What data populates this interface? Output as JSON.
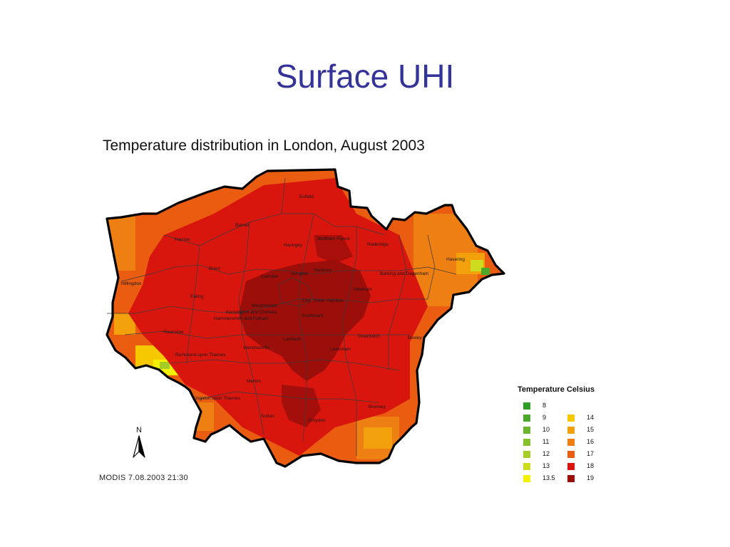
{
  "slide": {
    "title": "Surface UHI"
  },
  "map": {
    "title": "Temperature distribution in London, August 2003",
    "source_note": "MODIS  7.08.2003   21:30",
    "north_label": "N",
    "boroughs": [
      "Enfield",
      "Barnet",
      "Harrow",
      "Haringey",
      "Waltham Forest",
      "Redbridge",
      "Havering",
      "Brent",
      "Camden",
      "Islington",
      "Hackney",
      "Barking and Dagenham",
      "Hillingdon",
      "Newham",
      "Ealing",
      "Westminster",
      "City",
      "Tower Hamlets",
      "Kensington and Chelsea",
      "Hammersmith and Fulham",
      "Southwark",
      "Hounslow",
      "Greenwich",
      "Bexley",
      "Wandsworth",
      "Lambeth",
      "Lewisham",
      "Richmond upon Thames",
      "Merton",
      "Kingston upon Thames",
      "Bromley",
      "Sutton",
      "Croydon"
    ]
  },
  "legend": {
    "title": "Temperature Celsius",
    "items": [
      {
        "label": "8",
        "color": "#2e9e24"
      },
      {
        "label": "9",
        "color": "#4aa92a"
      },
      {
        "label": "10",
        "color": "#6bb52c"
      },
      {
        "label": "11",
        "color": "#86c02b"
      },
      {
        "label": "12",
        "color": "#a6cc27"
      },
      {
        "label": "13",
        "color": "#cddc1f"
      },
      {
        "label": "13.5",
        "color": "#f4f000"
      },
      {
        "label": "14",
        "color": "#f6c800"
      },
      {
        "label": "15",
        "color": "#f2a10c"
      },
      {
        "label": "16",
        "color": "#ee7f12"
      },
      {
        "label": "17",
        "color": "#ea5c10"
      },
      {
        "label": "18",
        "color": "#d8160e"
      },
      {
        "label": "19",
        "color": "#9c0e0a"
      }
    ]
  }
}
